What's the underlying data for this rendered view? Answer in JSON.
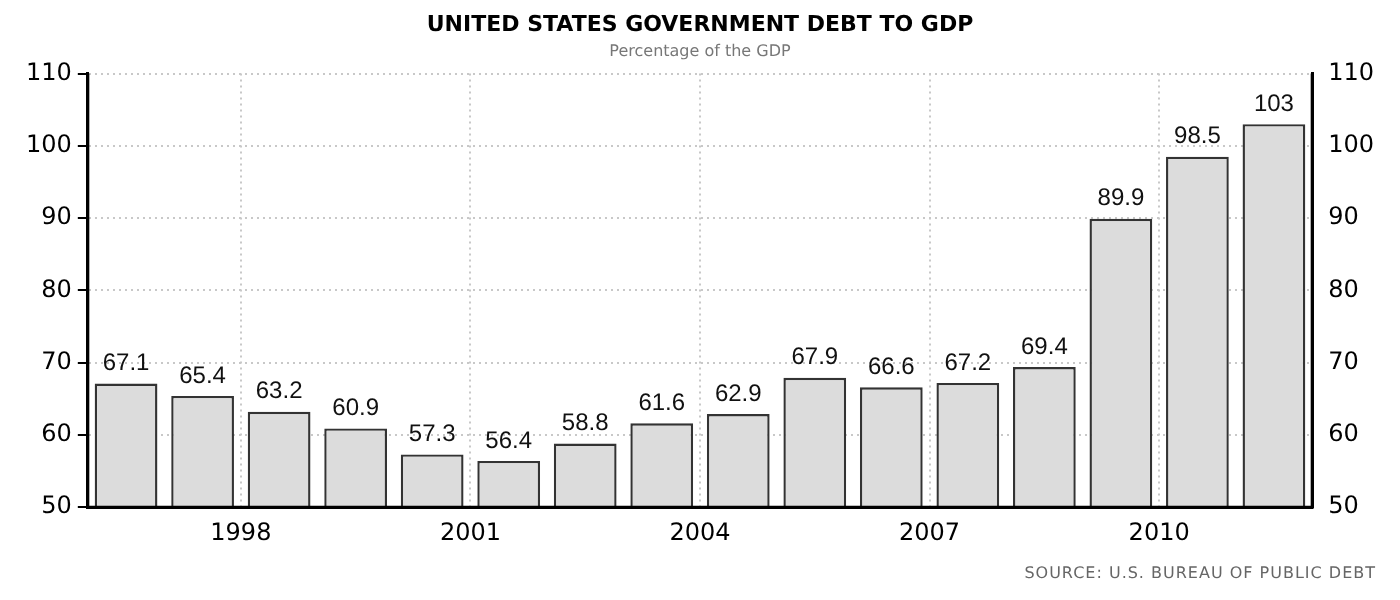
{
  "chart_data": {
    "type": "bar",
    "title": "UNITED STATES GOVERNMENT DEBT TO GDP",
    "subtitle": "Percentage of the GDP",
    "categories": [
      null,
      "1998",
      null,
      null,
      "2001",
      null,
      null,
      "2004",
      null,
      null,
      "2007",
      null,
      null,
      "2010",
      null,
      null
    ],
    "values": [
      67.1,
      65.4,
      63.2,
      60.9,
      57.3,
      56.4,
      58.8,
      61.6,
      62.9,
      67.9,
      66.6,
      67.2,
      69.4,
      89.9,
      98.5,
      103
    ],
    "color": "#dcdcdc",
    "data_labels": true,
    "ylim": [
      50,
      110
    ],
    "yticks": [
      50,
      60,
      70,
      80,
      90,
      100,
      110
    ],
    "y2lim": [
      50,
      110
    ],
    "y2ticks": [
      50,
      60,
      70,
      80,
      90,
      100,
      110
    ],
    "grid": true,
    "legend": false,
    "annotations": [
      "SOURCE: U.S. BUREAU OF PUBLIC DEBT"
    ]
  }
}
